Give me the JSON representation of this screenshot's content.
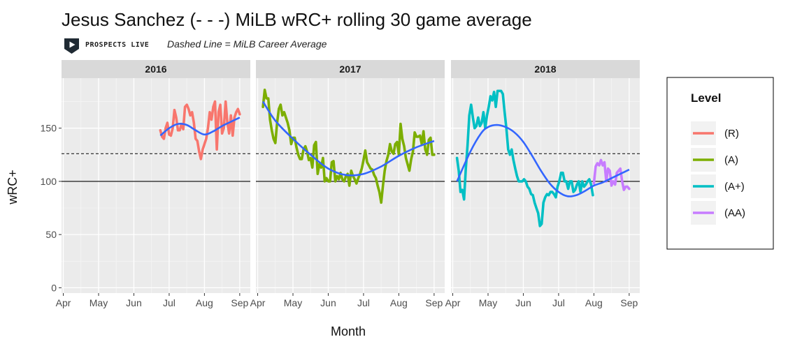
{
  "header": {
    "title": "Jesus Sanchez (- - -) MiLB wRC+ rolling 30 game average",
    "brand": "PROSPECTS LIVE",
    "subtitle": "Dashed Line = MiLB Career Average"
  },
  "chart_data": {
    "type": "line",
    "title": "Jesus Sanchez (- - -) MiLB wRC+ rolling 30 game average",
    "xlabel": "Month",
    "ylabel": "wRC+",
    "ylim": [
      -5,
      197
    ],
    "yticks": [
      0,
      50,
      100,
      150
    ],
    "x_unit": "month (4 = Apr, 9 = Sep)",
    "xlim": [
      3.95,
      9.3
    ],
    "xticks": [
      4,
      5,
      6,
      7,
      8,
      9
    ],
    "xtick_labels": [
      "Apr",
      "May",
      "Jun",
      "Jul",
      "Aug",
      "Sep"
    ],
    "hlines": [
      {
        "name": "league-average",
        "y": 100,
        "style": "solid",
        "color": "#000000"
      },
      {
        "name": "career-average",
        "y": 126,
        "style": "dashed",
        "color": "#000000"
      }
    ],
    "legend": {
      "title": "Level",
      "position": "right",
      "entries": [
        {
          "label": "(R)",
          "color": "#F8766D"
        },
        {
          "label": "(A)",
          "color": "#7CAE00"
        },
        {
          "label": "(A+)",
          "color": "#00BFC4"
        },
        {
          "label": "(AA)",
          "color": "#C77CFF"
        }
      ]
    },
    "smooth_color": "#3366FF",
    "panels": [
      {
        "label": "2016",
        "series": [
          {
            "level": "(R)",
            "color": "#F8766D",
            "x": [
              6.75,
              6.8,
              6.85,
              6.9,
              6.95,
              7.0,
              7.05,
              7.1,
              7.15,
              7.2,
              7.25,
              7.3,
              7.35,
              7.4,
              7.45,
              7.5,
              7.55,
              7.6,
              7.65,
              7.7,
              7.75,
              7.8,
              7.85,
              7.9,
              7.95,
              8.0,
              8.05,
              8.1,
              8.15,
              8.2,
              8.25,
              8.3,
              8.35,
              8.4,
              8.45,
              8.5,
              8.55,
              8.6,
              8.65,
              8.7,
              8.75,
              8.8,
              8.85,
              8.9,
              8.95,
              9.0
            ],
            "y": [
              148,
              142,
              140,
              150,
              155,
              144,
              143,
              150,
              167,
              160,
              148,
              148,
              154,
              149,
              170,
              172,
              168,
              162,
              165,
              155,
              140,
              138,
              128,
              121,
              130,
              135,
              140,
              150,
              165,
              158,
              170,
              175,
              130,
              165,
              172,
              145,
              150,
              175,
              155,
              145,
              162,
              143,
              160,
              165,
              168,
              163
            ]
          }
        ],
        "smooth": {
          "x": [
            6.75,
            7.0,
            7.25,
            7.5,
            7.75,
            8.0,
            8.25,
            8.5,
            8.75,
            9.0
          ],
          "y": [
            143,
            150,
            154,
            153,
            148,
            144,
            147,
            152,
            156,
            160
          ]
        }
      },
      {
        "label": "2017",
        "series": [
          {
            "level": "(A)",
            "color": "#7CAE00",
            "x": [
              4.15,
              4.2,
              4.25,
              4.3,
              4.35,
              4.4,
              4.45,
              4.5,
              4.55,
              4.6,
              4.65,
              4.7,
              4.75,
              4.8,
              4.85,
              4.9,
              4.95,
              5.0,
              5.05,
              5.1,
              5.15,
              5.2,
              5.25,
              5.3,
              5.35,
              5.4,
              5.45,
              5.5,
              5.55,
              5.6,
              5.65,
              5.7,
              5.75,
              5.8,
              5.85,
              5.9,
              5.95,
              6.0,
              6.05,
              6.1,
              6.15,
              6.2,
              6.25,
              6.3,
              6.35,
              6.4,
              6.45,
              6.5,
              6.55,
              6.6,
              6.65,
              6.7,
              6.75,
              6.8,
              6.85,
              6.9,
              6.95,
              7.0,
              7.05,
              7.1,
              7.15,
              7.2,
              7.25,
              7.3,
              7.35,
              7.4,
              7.45,
              7.5,
              7.55,
              7.6,
              7.65,
              7.7,
              7.75,
              7.8,
              7.85,
              7.9,
              7.95,
              8.0,
              8.05,
              8.1,
              8.15,
              8.2,
              8.25,
              8.3,
              8.35,
              8.4,
              8.45,
              8.5,
              8.55,
              8.6,
              8.65,
              8.7,
              8.75,
              8.8,
              8.85,
              8.9,
              8.95,
              9.0
            ],
            "y": [
              170,
              186,
              178,
              178,
              158,
              148,
              140,
              136,
              155,
              168,
              172,
              162,
              165,
              160,
              155,
              148,
              135,
              141,
              141,
              132,
              125,
              121,
              121,
              130,
              133,
              128,
              120,
              122,
              113,
              134,
              137,
              107,
              116,
              113,
              122,
              100,
              103,
              100,
              100,
              118,
              119,
              100,
              105,
              102,
              108,
              102,
              100,
              105,
              107,
              96,
              110,
              105,
              102,
              98,
              103,
              107,
              112,
              120,
              129,
              118,
              115,
              112,
              111,
              106,
              103,
              96,
              90,
              80,
              96,
              110,
              119,
              125,
              135,
              128,
              126,
              135,
              137,
              125,
              154,
              140,
              133,
              122,
              116,
              110,
              121,
              128,
              146,
              142,
              142,
              143,
              135,
              147,
              130,
              125,
              139,
              141,
              125,
              125
            ]
          }
        ],
        "smooth": {
          "x": [
            4.15,
            4.5,
            5.0,
            5.5,
            6.0,
            6.5,
            7.0,
            7.5,
            8.0,
            8.5,
            9.0
          ],
          "y": [
            175,
            157,
            140,
            125,
            112,
            106,
            107,
            114,
            124,
            132,
            138
          ]
        }
      },
      {
        "label": "2018",
        "series": [
          {
            "level": "(A+)",
            "color": "#00BFC4",
            "x": [
              4.12,
              4.17,
              4.22,
              4.27,
              4.32,
              4.37,
              4.42,
              4.47,
              4.52,
              4.57,
              4.62,
              4.67,
              4.72,
              4.77,
              4.82,
              4.87,
              4.92,
              4.97,
              5.02,
              5.07,
              5.12,
              5.17,
              5.22,
              5.27,
              5.32,
              5.37,
              5.42,
              5.47,
              5.52,
              5.57,
              5.62,
              5.67,
              5.72,
              5.77,
              5.82,
              5.87,
              5.92,
              5.97,
              6.02,
              6.07,
              6.12,
              6.17,
              6.22,
              6.27,
              6.32,
              6.37,
              6.42,
              6.47,
              6.52,
              6.57,
              6.62,
              6.67,
              6.72,
              6.77,
              6.82,
              6.87,
              6.92,
              6.97,
              7.02,
              7.07,
              7.12,
              7.17,
              7.22,
              7.27,
              7.32,
              7.37,
              7.42,
              7.47,
              7.52,
              7.57,
              7.62,
              7.67,
              7.72,
              7.77,
              7.82,
              7.87,
              7.92,
              7.97
            ],
            "y": [
              122,
              110,
              90,
              92,
              83,
              112,
              134,
              162,
              172,
              160,
              150,
              152,
              160,
              152,
              155,
              165,
              150,
              162,
              170,
              180,
              176,
              184,
              170,
              185,
              185,
              185,
              182,
              165,
              150,
              130,
              125,
              130,
              120,
              112,
              105,
              100,
              100,
              100,
              102,
              100,
              95,
              93,
              88,
              87,
              80,
              75,
              70,
              58,
              60,
              80,
              85,
              88,
              87,
              90,
              90,
              88,
              85,
              95,
              100,
              108,
              108,
              100,
              100,
              93,
              100,
              100,
              90,
              92,
              97,
              100,
              90,
              100,
              95,
              97,
              100,
              102,
              97,
              87
            ]
          },
          {
            "level": "(AA)",
            "color": "#C77CFF",
            "x": [
              8.0,
              8.05,
              8.1,
              8.15,
              8.2,
              8.25,
              8.3,
              8.35,
              8.4,
              8.45,
              8.5,
              8.55,
              8.6,
              8.65,
              8.7,
              8.75,
              8.8,
              8.85,
              8.9,
              8.95,
              9.0
            ],
            "y": [
              98,
              114,
              117,
              115,
              120,
              115,
              118,
              100,
              112,
              110,
              96,
              100,
              97,
              108,
              110,
              112,
              100,
              92,
              95,
              95,
              93
            ]
          }
        ],
        "smooth": {
          "x": [
            4.12,
            4.5,
            4.8,
            5.0,
            5.25,
            5.5,
            5.75,
            6.0,
            6.25,
            6.5,
            6.75,
            7.0,
            7.25,
            7.5,
            7.75,
            8.0,
            8.25,
            8.5,
            8.75,
            9.0
          ],
          "y": [
            100,
            128,
            145,
            151,
            153,
            151,
            146,
            137,
            124,
            110,
            98,
            90,
            86,
            87,
            91,
            96,
            99,
            103,
            107,
            111
          ]
        }
      }
    ]
  }
}
